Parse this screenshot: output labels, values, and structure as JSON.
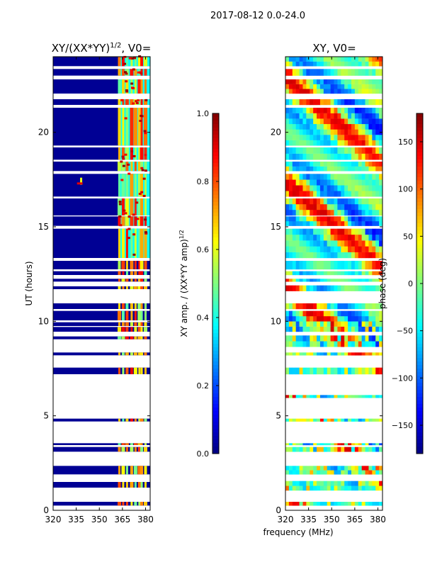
{
  "figure": {
    "suptitle": "2017-08-12 0.0-24.0",
    "xlabel": "frequency (MHz)"
  },
  "chart_data": [
    {
      "type": "heatmap",
      "title_main": "XY/(XX*YY)",
      "title_sup": "1/2",
      "title_tail": ", V0=",
      "ylabel": "UT (hours)",
      "xticks": [
        "320",
        "335",
        "350",
        "365",
        "380"
      ],
      "yticks": [
        "0",
        "5",
        "10",
        "15",
        "20"
      ],
      "xlim": [
        320,
        383
      ],
      "ylim": [
        0,
        24
      ],
      "colorbar": {
        "label_main": "XY amp. / (XX*YY amp)",
        "label_sup": "1/2",
        "range": [
          0,
          1
        ],
        "ticks": [
          "0.0",
          "0.2",
          "0.4",
          "0.6",
          "0.8",
          "1.0"
        ],
        "colormap": "jet"
      },
      "data_bands_ut": [
        [
          0.25,
          0.45
        ],
        [
          1.2,
          1.5
        ],
        [
          1.9,
          2.35
        ],
        [
          3.1,
          3.35
        ],
        [
          3.45,
          3.55
        ],
        [
          4.7,
          4.85
        ],
        [
          7.2,
          7.55
        ],
        [
          8.2,
          8.35
        ],
        [
          9.05,
          9.2
        ],
        [
          9.45,
          9.7
        ],
        [
          9.75,
          9.95
        ],
        [
          10.05,
          10.55
        ],
        [
          10.65,
          10.95
        ],
        [
          11.7,
          11.85
        ],
        [
          12.1,
          12.25
        ],
        [
          12.45,
          12.65
        ],
        [
          12.75,
          13.2
        ],
        [
          13.35,
          14.9
        ],
        [
          15.05,
          15.55
        ],
        [
          15.6,
          16.5
        ],
        [
          16.6,
          17.8
        ],
        [
          17.95,
          18.45
        ],
        [
          18.55,
          19.2
        ],
        [
          19.3,
          21.3
        ],
        [
          21.45,
          21.75
        ],
        [
          22.05,
          22.8
        ],
        [
          23.0,
          23.35
        ],
        [
          23.5,
          24.0
        ]
      ],
      "high_channels_mhz": [
        363,
        365.5,
        368,
        371,
        373.5,
        376,
        377.5,
        380
      ]
    },
    {
      "type": "heatmap",
      "title": "XY, V0=",
      "xticks": [
        "320",
        "335",
        "350",
        "365",
        "380"
      ],
      "yticks": [
        "0",
        "5",
        "10",
        "15",
        "20"
      ],
      "xlim": [
        320,
        383
      ],
      "ylim": [
        0,
        24
      ],
      "colorbar": {
        "label": "phase (deg)",
        "range": [
          -180,
          180
        ],
        "ticks": [
          "−150",
          "−100",
          "−50",
          "0",
          "50",
          "100",
          "150"
        ],
        "tick_values": [
          -150,
          -100,
          -50,
          0,
          50,
          100,
          150
        ],
        "colormap": "jet"
      },
      "data_bands_ut": [
        [
          0.25,
          0.45
        ],
        [
          1.05,
          1.55
        ],
        [
          1.9,
          2.35
        ],
        [
          3.1,
          3.35
        ],
        [
          3.45,
          3.55
        ],
        [
          4.7,
          4.85
        ],
        [
          5.95,
          6.1
        ],
        [
          7.2,
          7.55
        ],
        [
          8.2,
          8.35
        ],
        [
          8.65,
          9.25
        ],
        [
          9.45,
          10.55
        ],
        [
          10.65,
          10.95
        ],
        [
          11.6,
          11.9
        ],
        [
          12.1,
          12.25
        ],
        [
          12.45,
          12.65
        ],
        [
          12.75,
          13.2
        ],
        [
          13.35,
          14.9
        ],
        [
          15.05,
          15.55
        ],
        [
          15.6,
          16.5
        ],
        [
          16.6,
          17.8
        ],
        [
          17.95,
          18.45
        ],
        [
          18.55,
          19.2
        ],
        [
          19.3,
          21.3
        ],
        [
          21.45,
          21.75
        ],
        [
          22.05,
          22.8
        ],
        [
          23.0,
          23.35
        ],
        [
          23.5,
          24.0
        ]
      ]
    }
  ]
}
